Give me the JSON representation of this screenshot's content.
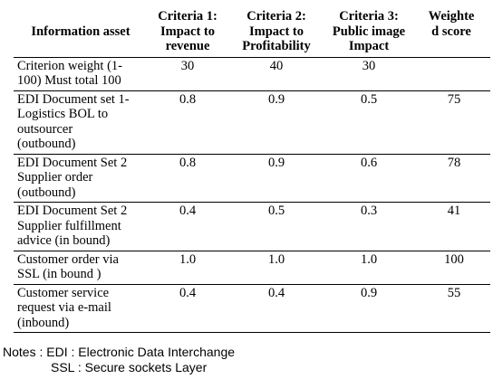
{
  "table": {
    "headers": [
      "Information asset",
      "Criteria 1: Impact to revenue",
      "Criteria 2: Impact to Profitability",
      "Criteria 3: Public image Impact",
      "Weighte d score"
    ],
    "header_lines": {
      "asset": [
        "Information asset"
      ],
      "c1": [
        "Criteria 1:",
        "Impact to",
        "revenue"
      ],
      "c2": [
        "Criteria 2:",
        "Impact to",
        "Profitability"
      ],
      "c3": [
        "Criteria 3:",
        "Public image",
        "Impact"
      ],
      "score": [
        "Weighte",
        "d score"
      ]
    },
    "rows": [
      {
        "asset_lines": [
          "Criterion weight (1-",
          "100) Must total 100"
        ],
        "c1": "30",
        "c2": "40",
        "c3": "30",
        "score": ""
      },
      {
        "asset_lines": [
          "EDI Document set 1-",
          "Logistics BOL to",
          "outsourcer",
          "(outbound)"
        ],
        "c1": "0.8",
        "c2": "0.9",
        "c3": "0.5",
        "score": "75"
      },
      {
        "asset_lines": [
          "EDI Document Set 2",
          "Supplier order",
          "(outbound)"
        ],
        "c1": "0.8",
        "c2": "0.9",
        "c3": "0.6",
        "score": "78"
      },
      {
        "asset_lines": [
          "EDI Document Set 2",
          "Supplier fulfillment",
          "advice (in bound)"
        ],
        "c1": "0.4",
        "c2": "0.5",
        "c3": "0.3",
        "score": "41"
      },
      {
        "asset_lines": [
          "Customer order via",
          "SSL (in bound )"
        ],
        "c1": "1.0",
        "c2": "1.0",
        "c3": "1.0",
        "score": "100"
      },
      {
        "asset_lines": [
          "Customer service",
          "request via e-mail",
          "(inbound)"
        ],
        "c1": "0.4",
        "c2": "0.4",
        "c3": "0.9",
        "score": "55"
      }
    ]
  },
  "notes": {
    "line1": "Notes : EDI : Electronic Data Interchange",
    "line2": "SSL : Secure sockets Layer"
  }
}
